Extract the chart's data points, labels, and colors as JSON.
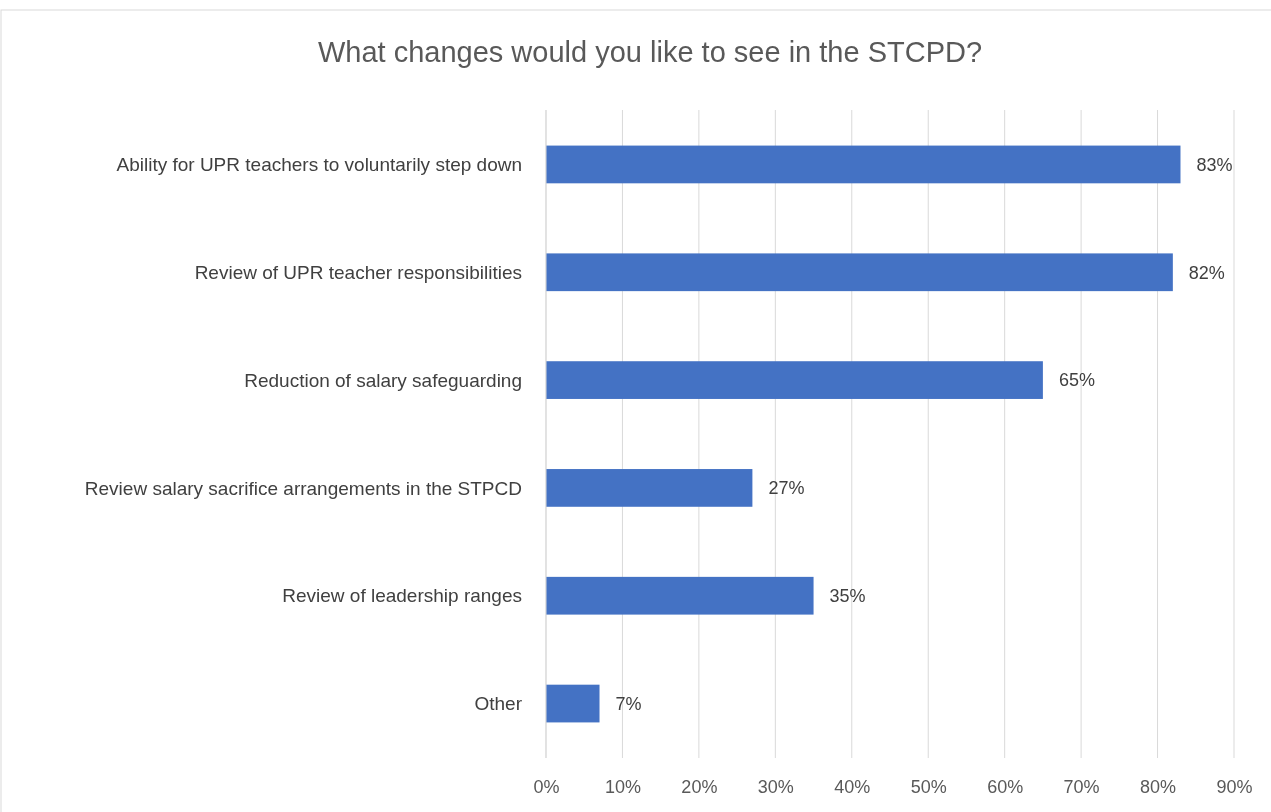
{
  "chart_data": {
    "type": "bar",
    "orientation": "horizontal",
    "title": "What changes would you like to see in the STCPD?",
    "categories": [
      "Ability for UPR teachers to voluntarily step down",
      "Review of UPR teacher responsibilities",
      "Reduction of salary safeguarding",
      "Review salary sacrifice arrangements in the STPCD",
      "Review of leadership ranges",
      "Other"
    ],
    "values": [
      83,
      82,
      65,
      27,
      35,
      7
    ],
    "value_labels": [
      "83%",
      "82%",
      "65%",
      "27%",
      "35%",
      "7%"
    ],
    "color": "#4472c4",
    "xlim": [
      0,
      90
    ],
    "xticks": [
      {
        "value": 0,
        "label": "0%"
      },
      {
        "value": 10,
        "label": "10%"
      },
      {
        "value": 20,
        "label": "20%"
      },
      {
        "value": 30,
        "label": "30%"
      },
      {
        "value": 40,
        "label": "40%"
      },
      {
        "value": 50,
        "label": "50%"
      },
      {
        "value": 60,
        "label": "60%"
      },
      {
        "value": 70,
        "label": "70%"
      },
      {
        "value": 80,
        "label": "80%"
      },
      {
        "value": 90,
        "label": "90%"
      }
    ],
    "grid": "x"
  }
}
